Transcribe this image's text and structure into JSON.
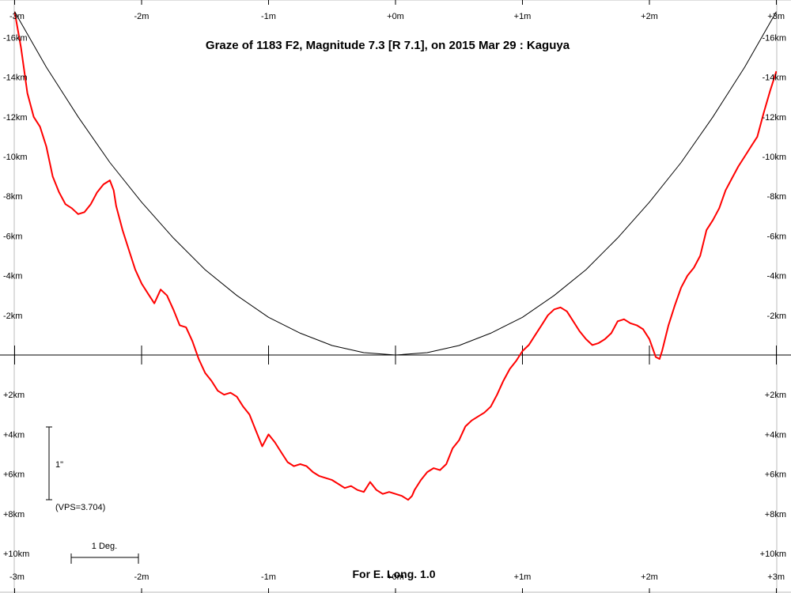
{
  "chart_data": {
    "type": "line",
    "title": "Graze of  1183 F2,  Magnitude 7.3 [R 7.1],  on 2015 Mar 29  :  Kaguya",
    "footer": "For E. Long. 1.0",
    "x_unit": "minutes",
    "y_unit": "km",
    "xlim": [
      -3,
      3
    ],
    "ylim": [
      -16.5,
      11
    ],
    "x_tick_labels_top": [
      "-3m",
      "-2m",
      "-1m",
      "+0m",
      "+1m",
      "+2m",
      "+3m"
    ],
    "x_tick_labels_bottom": [
      "-3m",
      "-2m",
      "-1m",
      "+0m",
      "+1m",
      "+2m",
      "+3m"
    ],
    "y_tick_labels": [
      "-16km",
      "-14km",
      "-12km",
      "-10km",
      "-8km",
      "-6km",
      "-4km",
      "-2km",
      "+2km",
      "+4km",
      "+6km",
      "+8km",
      "+10km"
    ],
    "series": [
      {
        "color": "#ff0000",
        "x": [
          -3.0,
          -2.95,
          -2.9,
          -2.85,
          -2.8,
          -2.75,
          -2.7,
          -2.65,
          -2.6,
          -2.55,
          -2.5,
          -2.45,
          -2.4,
          -2.35,
          -2.3,
          -2.25,
          -2.22,
          -2.2,
          -2.15,
          -2.1,
          -2.05,
          -2.0,
          -1.95,
          -1.9,
          -1.85,
          -1.8,
          -1.75,
          -1.7,
          -1.65,
          -1.6,
          -1.55,
          -1.5,
          -1.45,
          -1.4,
          -1.35,
          -1.3,
          -1.25,
          -1.2,
          -1.15,
          -1.1,
          -1.05,
          -1.0,
          -0.95,
          -0.9,
          -0.85,
          -0.8,
          -0.75,
          -0.7,
          -0.65,
          -0.6,
          -0.55,
          -0.5,
          -0.45,
          -0.4,
          -0.35,
          -0.3,
          -0.25,
          -0.2,
          -0.15,
          -0.1,
          -0.05,
          0.0,
          0.05,
          0.1,
          0.13,
          0.15,
          0.2,
          0.25,
          0.3,
          0.35,
          0.4,
          0.45,
          0.5,
          0.55,
          0.6,
          0.65,
          0.7,
          0.75,
          0.8,
          0.85,
          0.9,
          0.95,
          1.0,
          1.05,
          1.1,
          1.15,
          1.2,
          1.25,
          1.3,
          1.35,
          1.4,
          1.45,
          1.5,
          1.55,
          1.6,
          1.65,
          1.7,
          1.75,
          1.8,
          1.85,
          1.9,
          1.95,
          2.0,
          2.05,
          2.08,
          2.1,
          2.15,
          2.2,
          2.25,
          2.3,
          2.35,
          2.4,
          2.45,
          2.5,
          2.55,
          2.6,
          2.65,
          2.7,
          2.75,
          2.8,
          2.85,
          2.9,
          2.95,
          3.0
        ],
        "y": [
          -17.3,
          -15.5,
          -13.2,
          -12.0,
          -11.5,
          -10.5,
          -9.0,
          -8.2,
          -7.6,
          -7.4,
          -7.1,
          -7.2,
          -7.6,
          -8.2,
          -8.6,
          -8.8,
          -8.3,
          -7.5,
          -6.3,
          -5.3,
          -4.3,
          -3.6,
          -3.1,
          -2.6,
          -3.3,
          -3.0,
          -2.3,
          -1.5,
          -1.4,
          -0.7,
          0.2,
          0.9,
          1.3,
          1.8,
          2.0,
          1.9,
          2.1,
          2.6,
          3.0,
          3.8,
          4.6,
          4.0,
          4.4,
          4.9,
          5.4,
          5.6,
          5.5,
          5.6,
          5.9,
          6.1,
          6.2,
          6.3,
          6.5,
          6.7,
          6.6,
          6.8,
          6.9,
          6.4,
          6.8,
          7.0,
          6.9,
          7.0,
          7.1,
          7.3,
          7.1,
          6.8,
          6.3,
          5.9,
          5.7,
          5.8,
          5.5,
          4.7,
          4.3,
          3.6,
          3.3,
          3.1,
          2.9,
          2.6,
          2.0,
          1.3,
          0.7,
          0.3,
          -0.2,
          -0.5,
          -1.0,
          -1.5,
          -2.0,
          -2.3,
          -2.4,
          -2.2,
          -1.7,
          -1.2,
          -0.8,
          -0.5,
          -0.6,
          -0.8,
          -1.1,
          -1.7,
          -1.8,
          -1.6,
          -1.5,
          -1.3,
          -0.8,
          0.1,
          0.2,
          -0.2,
          -1.5,
          -2.5,
          -3.4,
          -4.0,
          -4.4,
          -5.0,
          -6.3,
          -6.8,
          -7.4,
          -8.3,
          -8.9,
          -9.5,
          -10.0,
          -10.5,
          -11.0,
          -12.2,
          -13.3,
          -14.3
        ]
      },
      {
        "color": "#000000",
        "x": [
          -3.0,
          -2.75,
          -2.5,
          -2.25,
          -2.0,
          -1.75,
          -1.5,
          -1.25,
          -1.0,
          -0.75,
          -0.5,
          -0.25,
          0.0,
          0.25,
          0.5,
          0.75,
          1.0,
          1.25,
          1.5,
          1.75,
          2.0,
          2.25,
          2.5,
          2.75,
          3.0
        ],
        "y": [
          -17.3,
          -14.5,
          -12.0,
          -9.7,
          -7.7,
          -5.9,
          -4.3,
          -3.0,
          -1.9,
          -1.1,
          -0.48,
          -0.12,
          0.0,
          -0.12,
          -0.48,
          -1.1,
          -1.9,
          -3.0,
          -4.3,
          -5.9,
          -7.7,
          -9.7,
          -12.0,
          -14.5,
          -17.3
        ]
      }
    ],
    "annotations": {
      "vertical_scale_label": "1\"",
      "vps_label": "(VPS=3.704)",
      "horizontal_scale_label": "1 Deg."
    }
  }
}
